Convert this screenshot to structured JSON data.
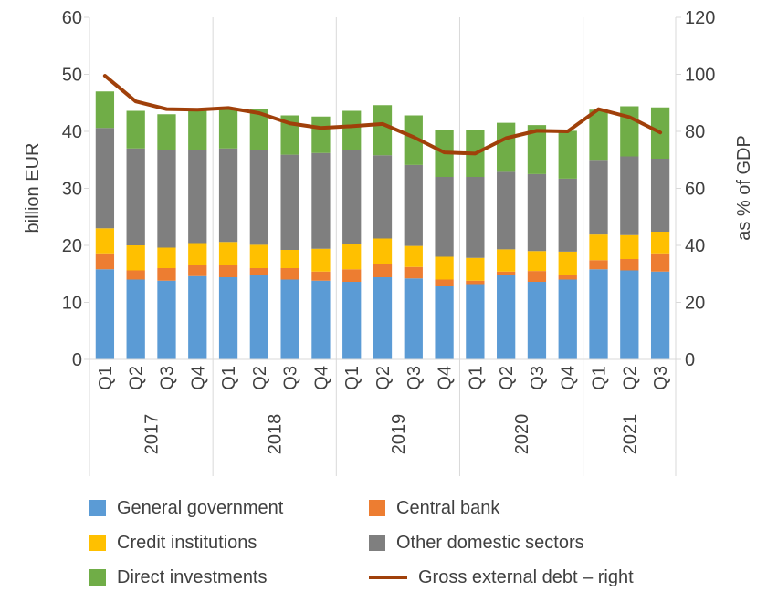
{
  "chart_data": {
    "type": "bar",
    "stacked": true,
    "periods": [
      {
        "year": "2017",
        "quarters": [
          "Q1",
          "Q2",
          "Q3",
          "Q4"
        ]
      },
      {
        "year": "2018",
        "quarters": [
          "Q1",
          "Q2",
          "Q3",
          "Q4"
        ]
      },
      {
        "year": "2019",
        "quarters": [
          "Q1",
          "Q2",
          "Q3",
          "Q4"
        ]
      },
      {
        "year": "2020",
        "quarters": [
          "Q1",
          "Q2",
          "Q3",
          "Q4"
        ]
      },
      {
        "year": "2021",
        "quarters": [
          "Q1",
          "Q2",
          "Q3"
        ]
      }
    ],
    "ylabel": "billion EUR",
    "y2label": "as % of GDP",
    "ylim": [
      0,
      60
    ],
    "y2lim": [
      0,
      120
    ],
    "yticks": [
      "0",
      "10",
      "20",
      "30",
      "40",
      "50",
      "60"
    ],
    "y2ticks": [
      "0",
      "20",
      "40",
      "60",
      "80",
      "100",
      "120"
    ],
    "grid": false,
    "legend_position": "bottom",
    "series": [
      {
        "name": "General government",
        "color": "#5b9bd5",
        "values": [
          15.8,
          14.0,
          13.8,
          14.6,
          14.4,
          14.8,
          14.0,
          13.8,
          13.6,
          14.4,
          14.2,
          12.8,
          13.2,
          14.8,
          13.6,
          14.0,
          15.8,
          15.6,
          15.4
        ]
      },
      {
        "name": "Central bank",
        "color": "#ed7d31",
        "values": [
          2.8,
          1.6,
          2.2,
          2.0,
          2.2,
          1.2,
          2.0,
          1.6,
          2.2,
          2.4,
          2.0,
          1.2,
          0.6,
          0.6,
          1.9,
          0.8,
          1.6,
          2.0,
          3.2
        ]
      },
      {
        "name": "Credit institutions",
        "color": "#ffc000",
        "values": [
          4.4,
          4.4,
          3.6,
          3.8,
          4.0,
          4.1,
          3.2,
          4.0,
          4.4,
          4.4,
          3.7,
          4.0,
          4.0,
          3.9,
          3.5,
          4.1,
          4.5,
          4.2,
          3.8
        ]
      },
      {
        "name": "Other domestic sectors",
        "color": "#7f7f7f",
        "values": [
          17.6,
          17.0,
          17.1,
          16.3,
          16.4,
          16.6,
          16.7,
          16.8,
          16.6,
          14.6,
          14.2,
          14.0,
          14.2,
          13.6,
          13.5,
          12.8,
          13.1,
          13.8,
          12.8
        ]
      },
      {
        "name": "Direct investments",
        "color": "#70ad47",
        "values": [
          6.4,
          6.6,
          6.3,
          6.9,
          7.0,
          7.3,
          6.9,
          6.4,
          6.8,
          8.8,
          8.7,
          8.2,
          8.3,
          8.6,
          8.6,
          8.4,
          8.8,
          8.8,
          9.0
        ]
      },
      {
        "name": "Gross external debt – right",
        "type": "line",
        "axis": "right",
        "color": "#a0400a",
        "values": [
          99.5,
          90.5,
          87.8,
          87.6,
          88.2,
          86.4,
          82.8,
          81.2,
          81.8,
          82.6,
          78.0,
          72.6,
          72.2,
          77.6,
          80.2,
          80.0,
          87.8,
          85.0,
          79.6
        ]
      }
    ]
  }
}
